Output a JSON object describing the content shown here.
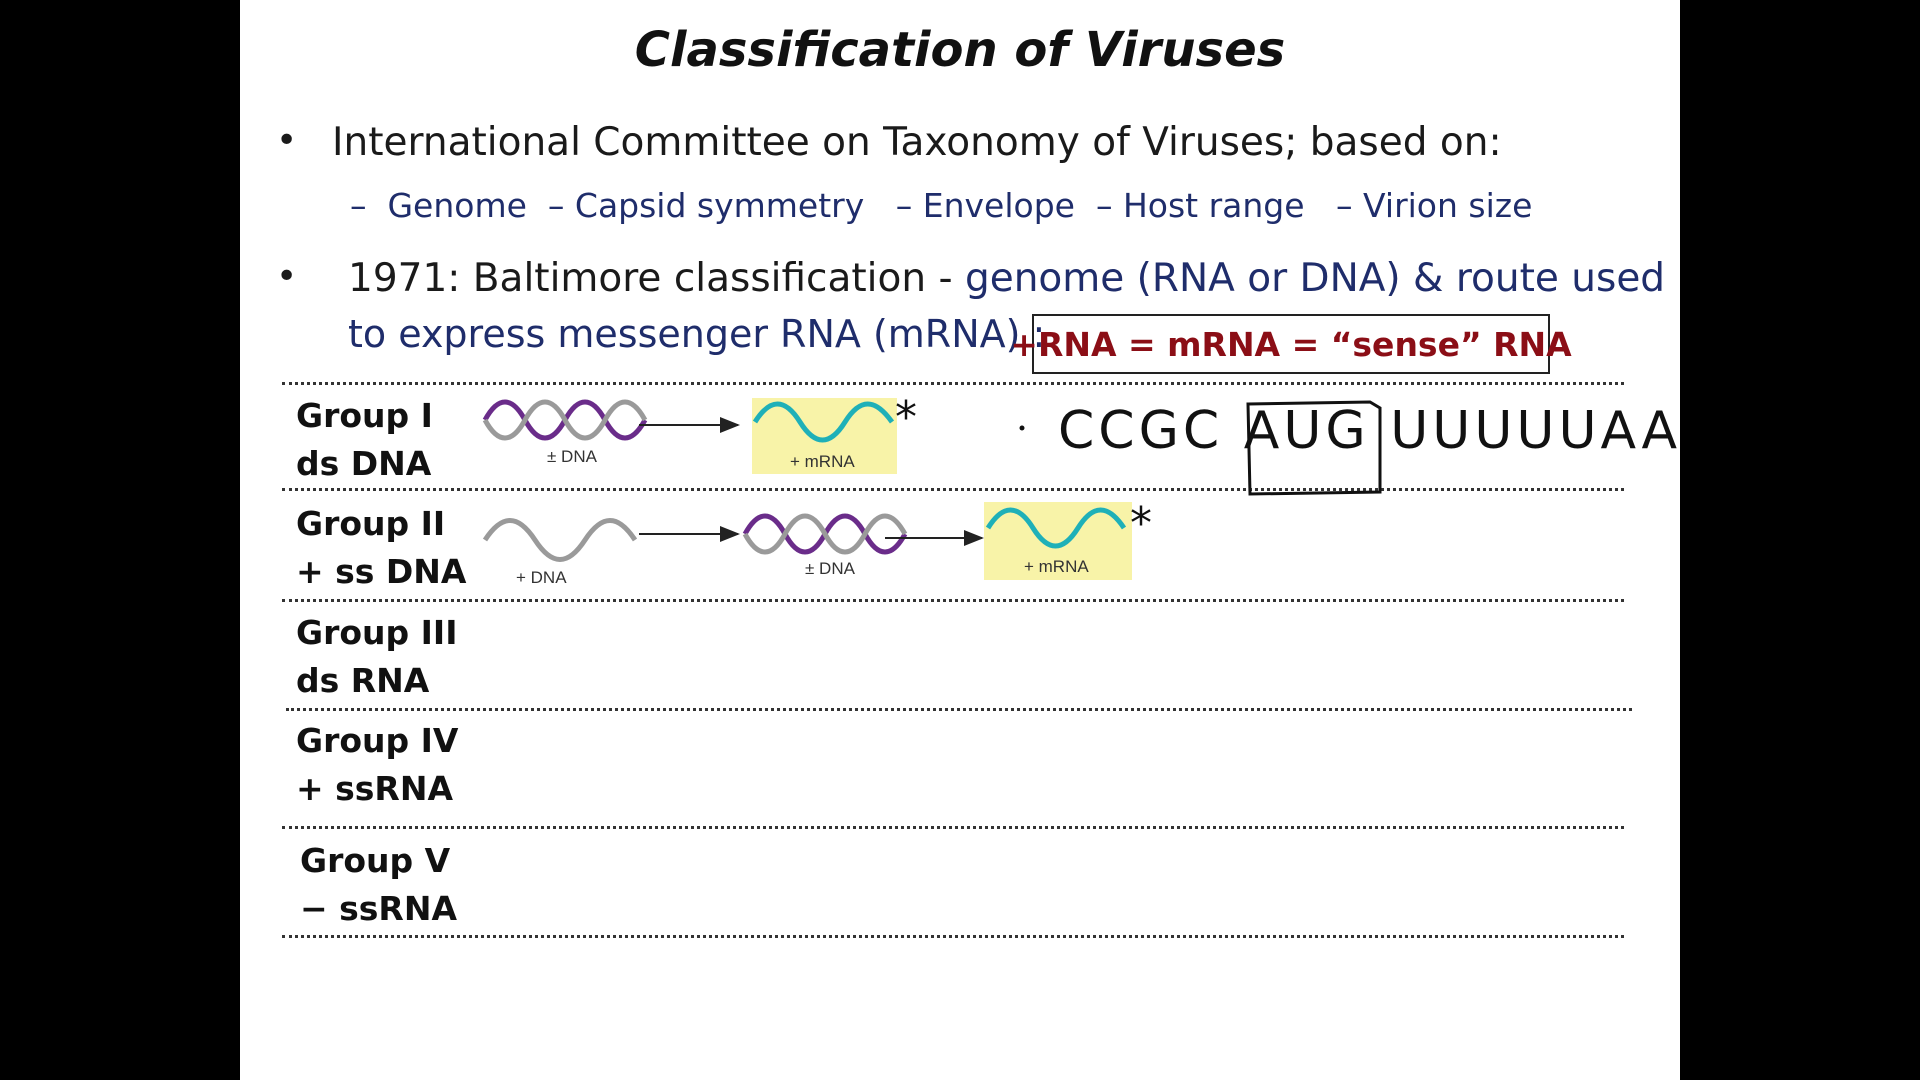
{
  "slide": {
    "title": "Classification of Viruses",
    "bullets": [
      {
        "marker": "•",
        "text": "International Committee on Taxonomy of Viruses; based on:",
        "sub_items": [
          "Genome",
          "Capsid symmetry",
          "Envelope",
          "Host range",
          "Virion size"
        ]
      },
      {
        "marker": "•",
        "text_prefix": "1971: Baltimore classification - ",
        "text_blue_1": "genome (RNA or DNA) & route used",
        "text_blue_2": "to express messenger RNA (mRNA) :"
      }
    ],
    "sub_dash": "–",
    "sense_box": "+RNA = mRNA = “sense” RNA",
    "groups": [
      {
        "line1": "Group I",
        "line2": "ds DNA"
      },
      {
        "line1": "Group II",
        "line2": "+ ss DNA"
      },
      {
        "line1": "Group III",
        "line2": "ds RNA"
      },
      {
        "line1": "Group IV",
        "line2": "+ ssRNA"
      },
      {
        "line1": "Group V",
        "line2": "− ssRNA"
      }
    ],
    "diagram_labels": {
      "pm_dna": "± DNA",
      "plus_mrna": "+ mRNA",
      "plus_dna": "+ DNA",
      "asterisk": "*"
    },
    "handwriting": "CCGC AUG UUUUUAA...",
    "colors": {
      "dsdna_strand_1": "#6a2c8a",
      "dsdna_strand_2": "#9a9a9a",
      "mrna": "#1fb0b8",
      "mrna_bg": "#f8f3a8",
      "sense_text": "#8b0e16",
      "sub_text": "#1f2d6b"
    }
  }
}
